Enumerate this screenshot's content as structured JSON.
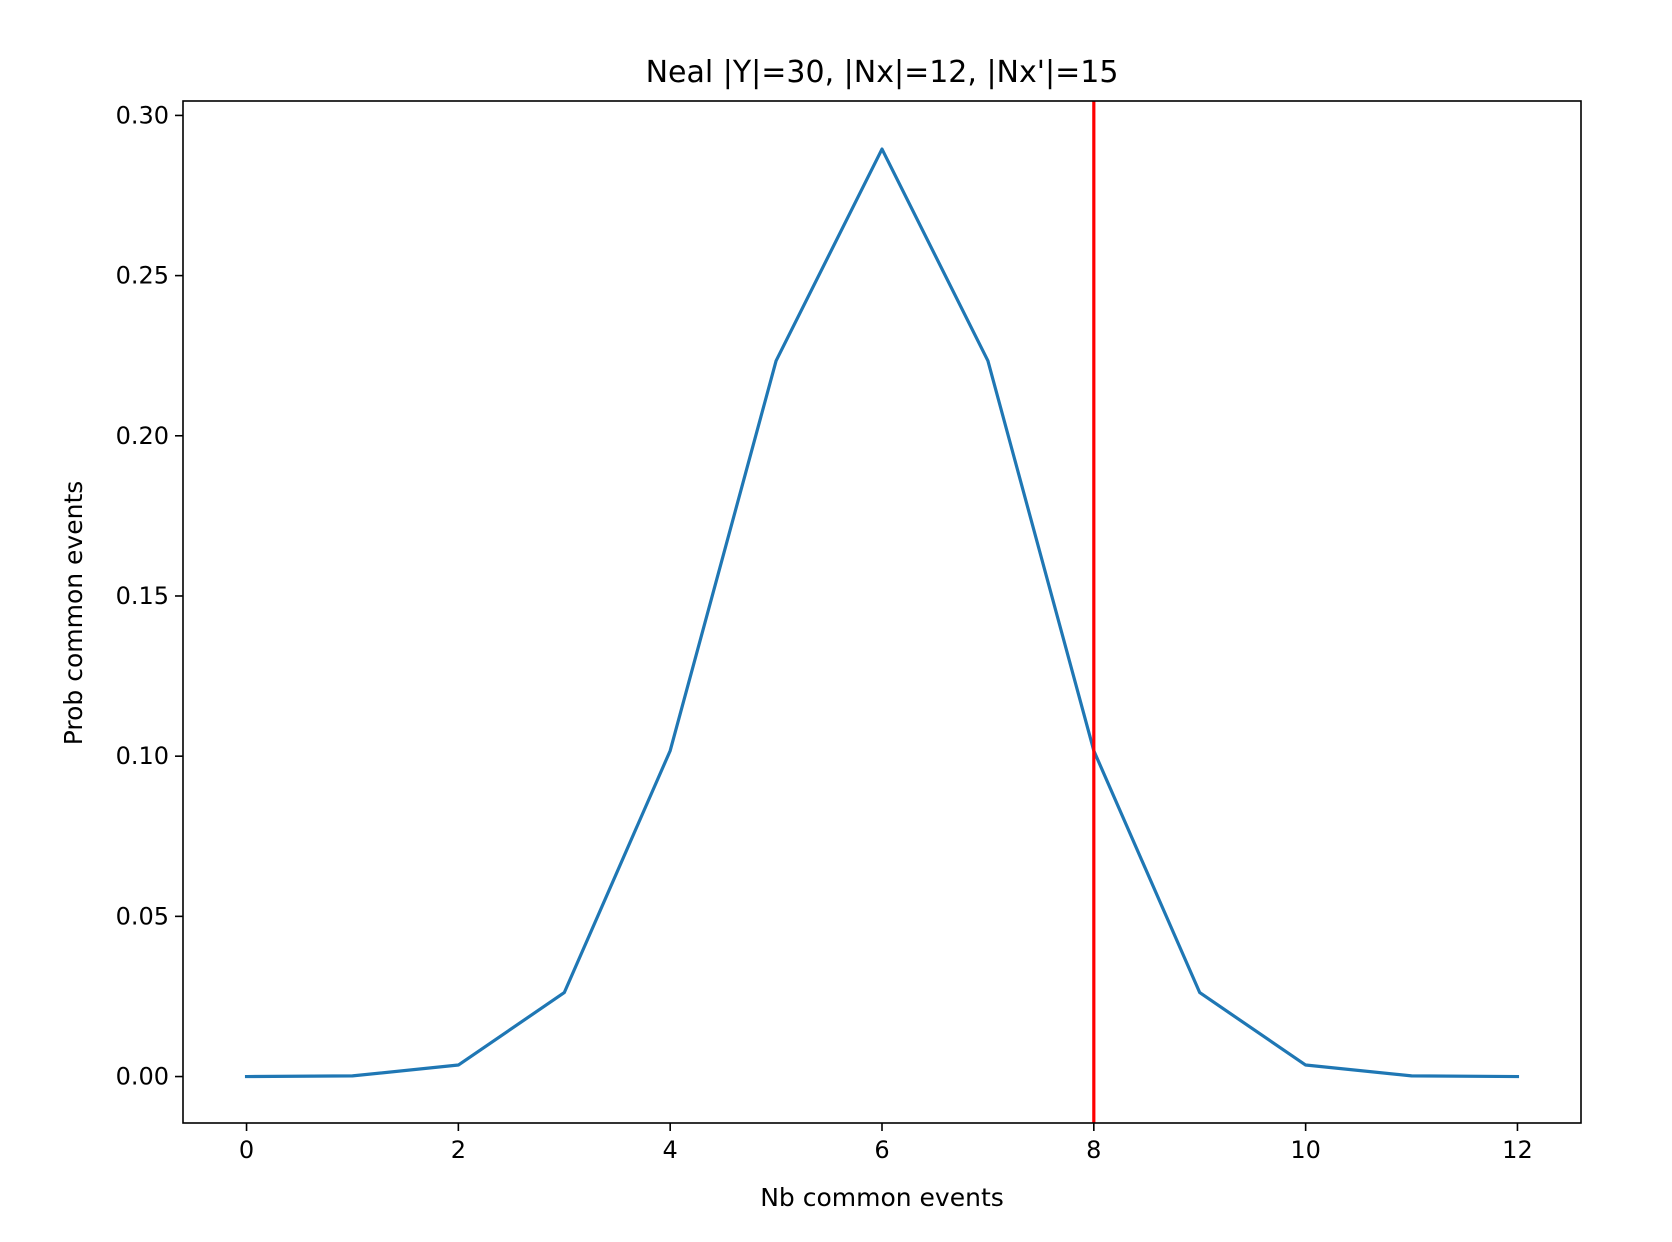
{
  "chart_data": {
    "type": "line",
    "title": "Neal |Y|=30, |Nx|=12, |Nx'|=15",
    "xlabel": "Nb common events",
    "ylabel": "Prob common events",
    "xlim": [
      -0.6,
      12.6
    ],
    "ylim": [
      -0.0145,
      0.3045
    ],
    "x_ticks": [
      0,
      2,
      4,
      6,
      8,
      10,
      12
    ],
    "x_tick_labels": [
      "0",
      "2",
      "4",
      "6",
      "8",
      "10",
      "12"
    ],
    "y_ticks": [
      0.0,
      0.05,
      0.1,
      0.15,
      0.2,
      0.25,
      0.3
    ],
    "y_tick_labels": [
      "0.00",
      "0.05",
      "0.10",
      "0.15",
      "0.20",
      "0.25",
      "0.30"
    ],
    "grid": false,
    "series": [
      {
        "color": "#1f77b4",
        "x": [
          0,
          1,
          2,
          3,
          4,
          5,
          6,
          7,
          8,
          9,
          10,
          11,
          12
        ],
        "values": [
          0.0,
          0.0002,
          0.0036,
          0.0262,
          0.1017,
          0.2234,
          0.2895,
          0.2234,
          0.1017,
          0.0262,
          0.0036,
          0.0002,
          0.0
        ]
      }
    ],
    "vertical_line": {
      "x": 8,
      "color": "#ff0000"
    }
  }
}
